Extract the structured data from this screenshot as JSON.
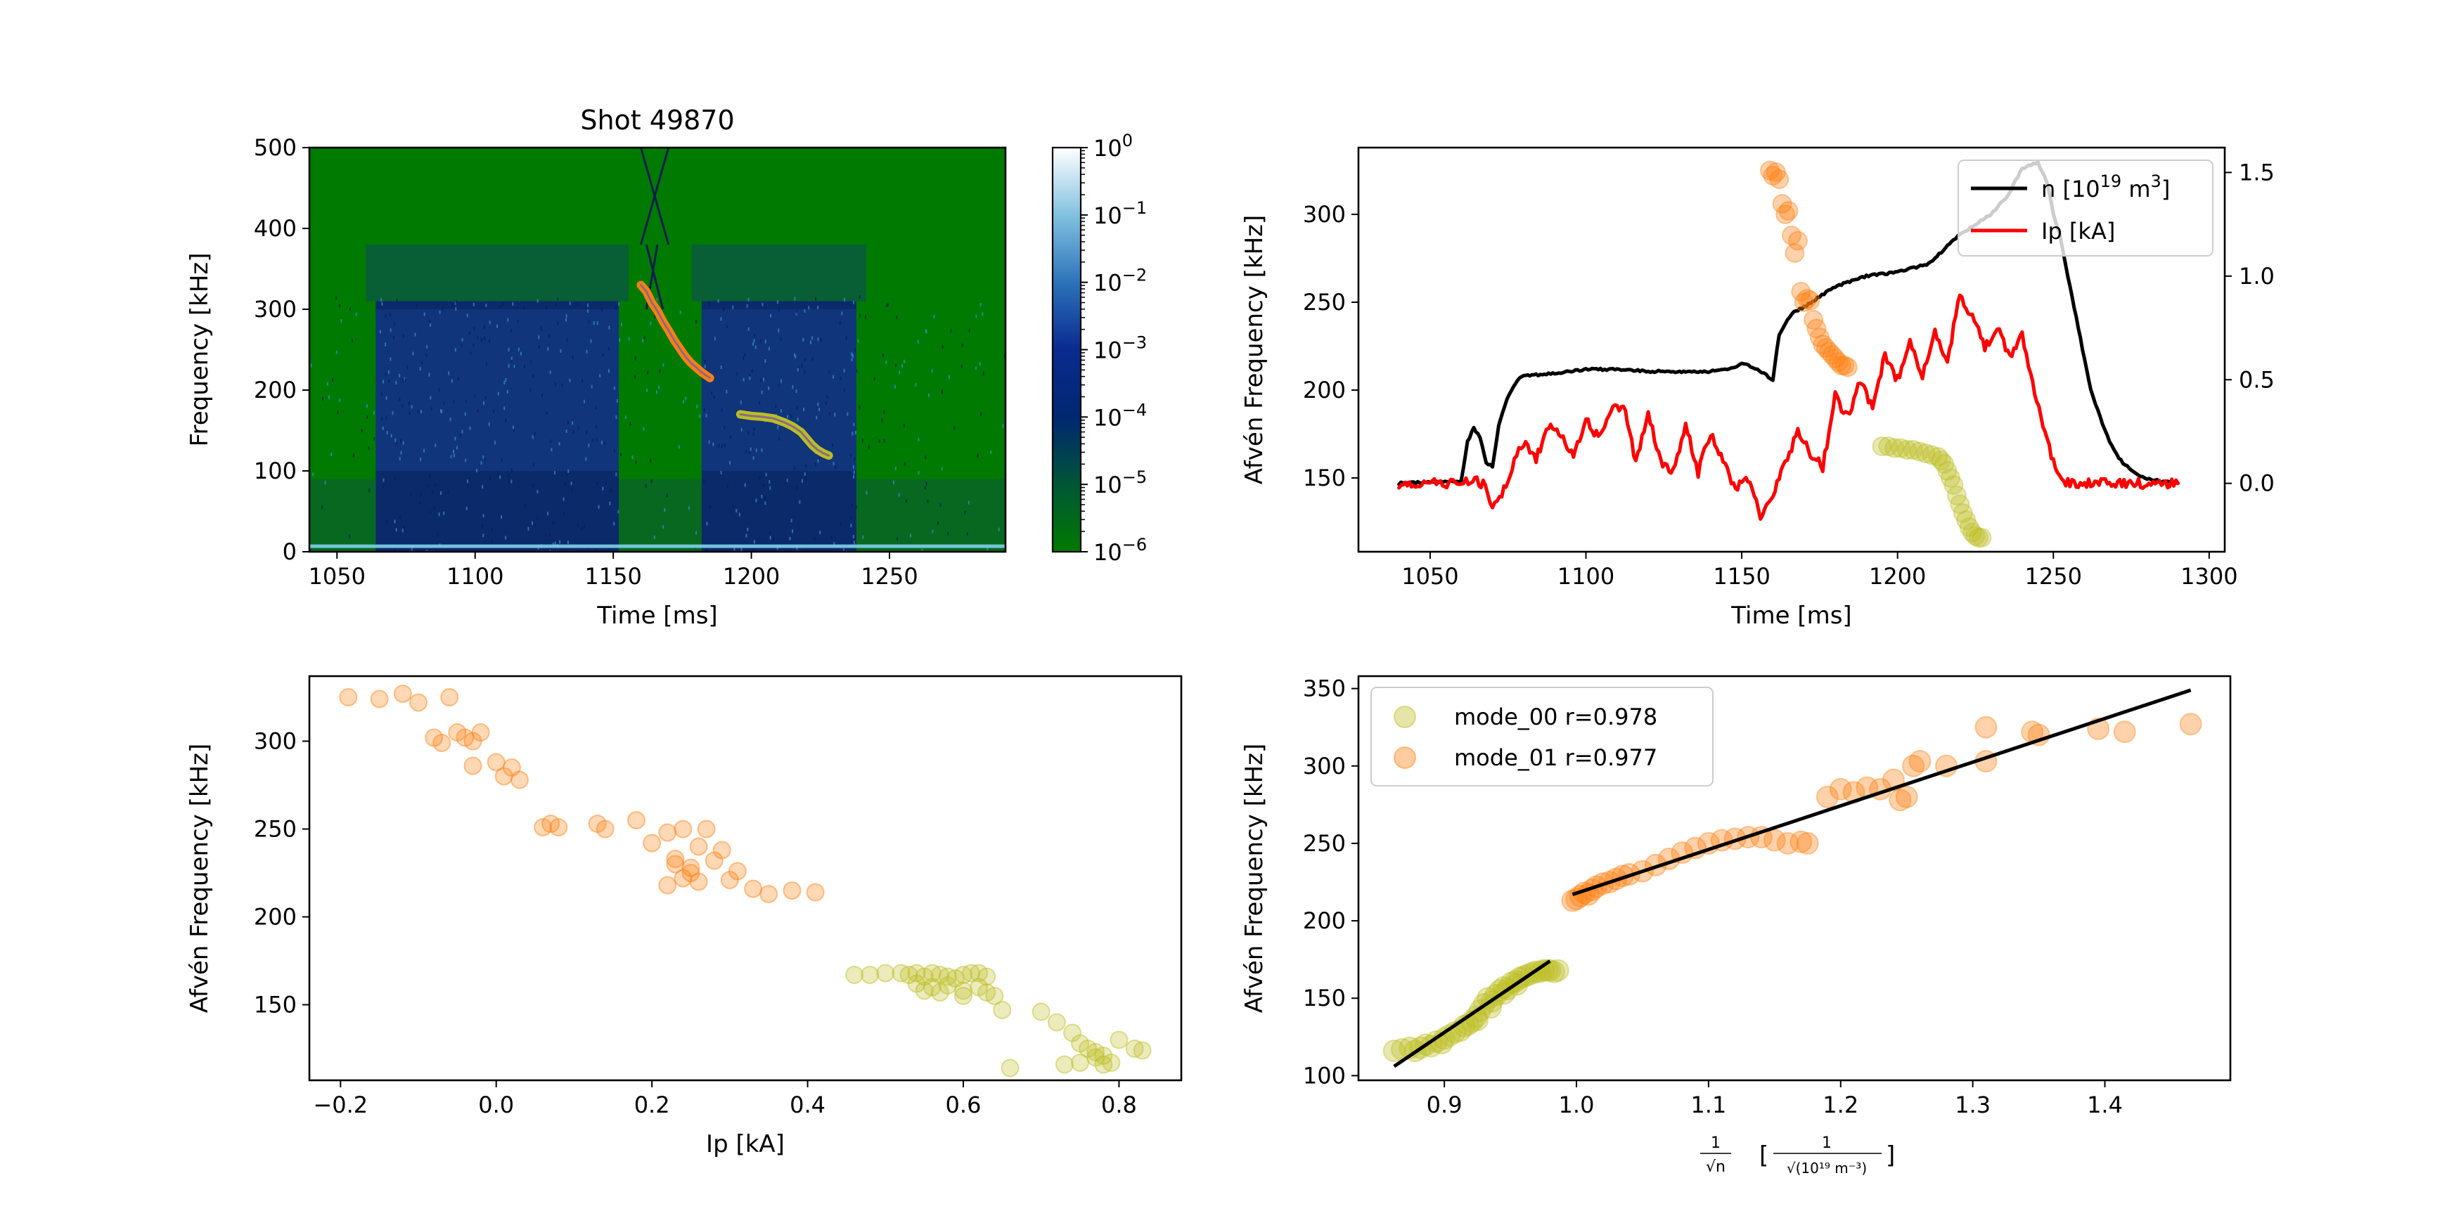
{
  "figure": {
    "background": "#ffffff",
    "colors": {
      "mode_00": "#bcbd22",
      "mode_01": "#ff7f0e",
      "density": "#000000",
      "current": "#ff0000",
      "fit": "#000000",
      "spectrogram_bg": "#007a00",
      "spectrogram_band": "#0b2a6a"
    }
  },
  "chart_data": [
    {
      "id": "spectrogram",
      "type": "heatmap",
      "title": "Shot 49870",
      "xlabel": "Time [ms]",
      "ylabel": "Frequency [kHz]",
      "xlim": [
        1040,
        1292
      ],
      "ylim": [
        0,
        500
      ],
      "xticks": [
        1050,
        1100,
        1150,
        1200,
        1250
      ],
      "xtick_labels": [
        "1050",
        "1100",
        "1150",
        "1200",
        "1250"
      ],
      "yticks": [
        0,
        100,
        200,
        300,
        400,
        500
      ],
      "ytick_labels": [
        "0",
        "100",
        "200",
        "300",
        "400",
        "500"
      ],
      "colorbar": {
        "scale": "log",
        "colormap": "ocean",
        "ticks": [
          {
            "base": "10",
            "exp": "0"
          },
          {
            "base": "10",
            "exp": "−1"
          },
          {
            "base": "10",
            "exp": "−2"
          },
          {
            "base": "10",
            "exp": "−3"
          },
          {
            "base": "10",
            "exp": "−4"
          },
          {
            "base": "10",
            "exp": "−5"
          },
          {
            "base": "10",
            "exp": "−6"
          }
        ]
      },
      "high_power_windows_ms": [
        [
          1064,
          1152
        ],
        [
          1182,
          1238
        ]
      ],
      "overlays": [
        {
          "name": "mode_01",
          "points": [
            [
              1160,
              330
            ],
            [
              1162,
              322
            ],
            [
              1164,
              308
            ],
            [
              1166,
              298
            ],
            [
              1168,
              285
            ],
            [
              1170,
              274
            ],
            [
              1172,
              262
            ],
            [
              1174,
              252
            ],
            [
              1176,
              242
            ],
            [
              1178,
              234
            ],
            [
              1180,
              228
            ],
            [
              1182,
              222
            ],
            [
              1185,
              215
            ]
          ]
        },
        {
          "name": "mode_00",
          "points": [
            [
              1196,
              170
            ],
            [
              1200,
              168
            ],
            [
              1204,
              167
            ],
            [
              1208,
              165
            ],
            [
              1212,
              160
            ],
            [
              1215,
              155
            ],
            [
              1218,
              148
            ],
            [
              1220,
              140
            ],
            [
              1222,
              132
            ],
            [
              1224,
              126
            ],
            [
              1226,
              122
            ],
            [
              1228,
              119
            ]
          ]
        }
      ]
    },
    {
      "id": "alfven_vs_time",
      "type": "line",
      "xlabel": "Time [ms]",
      "ylabel": "Afvén Frequency [kHz]",
      "xlim": [
        1027,
        1305
      ],
      "ylim": [
        108,
        338
      ],
      "y2lim": [
        -0.33,
        1.62
      ],
      "xticks": [
        1050,
        1100,
        1150,
        1200,
        1250,
        1300
      ],
      "xtick_labels": [
        "1050",
        "1100",
        "1150",
        "1200",
        "1250",
        "1300"
      ],
      "yticks": [
        150,
        200,
        250,
        300
      ],
      "ytick_labels": [
        "150",
        "200",
        "250",
        "300"
      ],
      "y2ticks": [
        0.0,
        0.5,
        1.0,
        1.5
      ],
      "y2tick_labels": [
        "0.0",
        "0.5",
        "1.0",
        "1.5"
      ],
      "legend_position": "top-right",
      "legend": [
        {
          "key": "density",
          "label_main": "n  [10",
          "label_sup": "19",
          "label_mid": " m",
          "label_sup2": "3",
          "label_end": "]"
        },
        {
          "key": "current",
          "label_main": "Ip [kA]"
        }
      ],
      "series": [
        {
          "name": "n",
          "axis": "right",
          "x": [
            1040,
            1060,
            1062,
            1064,
            1066,
            1068,
            1070,
            1072,
            1074,
            1076,
            1078,
            1080,
            1090,
            1100,
            1110,
            1120,
            1130,
            1140,
            1146,
            1150,
            1155,
            1160,
            1162,
            1166,
            1170,
            1175,
            1180,
            1190,
            1200,
            1210,
            1220,
            1230,
            1235,
            1240,
            1245,
            1248,
            1250,
            1252,
            1254,
            1256,
            1258,
            1260,
            1262,
            1265,
            1268,
            1271,
            1275,
            1280,
            1290
          ],
          "y": [
            0.0,
            0.01,
            0.2,
            0.27,
            0.22,
            0.1,
            0.08,
            0.28,
            0.38,
            0.45,
            0.5,
            0.52,
            0.53,
            0.55,
            0.55,
            0.54,
            0.54,
            0.54,
            0.55,
            0.58,
            0.55,
            0.5,
            0.72,
            0.82,
            0.85,
            0.9,
            0.95,
            1.0,
            1.02,
            1.06,
            1.2,
            1.3,
            1.38,
            1.52,
            1.55,
            1.45,
            1.3,
            1.2,
            1.05,
            0.9,
            0.75,
            0.6,
            0.45,
            0.32,
            0.2,
            0.12,
            0.06,
            0.02,
            0.0
          ]
        },
        {
          "name": "Ip",
          "axis": "right",
          "x": [
            1040,
            1050,
            1060,
            1063,
            1067,
            1070,
            1073,
            1077,
            1080,
            1084,
            1088,
            1092,
            1096,
            1100,
            1104,
            1108,
            1112,
            1116,
            1120,
            1124,
            1128,
            1132,
            1136,
            1140,
            1144,
            1148,
            1152,
            1156,
            1160,
            1164,
            1168,
            1172,
            1176,
            1180,
            1184,
            1188,
            1192,
            1196,
            1200,
            1204,
            1208,
            1212,
            1216,
            1220,
            1224,
            1228,
            1232,
            1236,
            1240,
            1244,
            1248,
            1252,
            1256,
            1260,
            1270,
            1280,
            1290
          ],
          "y": [
            0.0,
            0.0,
            0.0,
            0.02,
            0.0,
            -0.12,
            -0.05,
            0.1,
            0.2,
            0.12,
            0.28,
            0.22,
            0.15,
            0.3,
            0.22,
            0.35,
            0.38,
            0.1,
            0.35,
            0.1,
            0.05,
            0.28,
            0.05,
            0.25,
            0.1,
            -0.02,
            0.02,
            -0.15,
            -0.05,
            0.1,
            0.25,
            0.15,
            0.08,
            0.42,
            0.32,
            0.5,
            0.35,
            0.62,
            0.5,
            0.7,
            0.52,
            0.72,
            0.58,
            0.92,
            0.8,
            0.66,
            0.75,
            0.6,
            0.72,
            0.45,
            0.2,
            0.02,
            0.0,
            0.0,
            0.0,
            0.0,
            0.0
          ]
        },
        {
          "name": "mode_01",
          "axis": "left",
          "type": "scatter",
          "x": [
            1159,
            1160,
            1161,
            1162,
            1163,
            1164,
            1165,
            1166,
            1167,
            1168,
            1169,
            1170,
            1171,
            1172,
            1173,
            1174,
            1175,
            1176,
            1177,
            1178,
            1179,
            1180,
            1181,
            1182,
            1183,
            1184
          ],
          "y": [
            325,
            322,
            324,
            320,
            306,
            300,
            302,
            288,
            278,
            285,
            256,
            250,
            252,
            251,
            240,
            235,
            230,
            226,
            224,
            222,
            220,
            218,
            216,
            214,
            214,
            213
          ]
        },
        {
          "name": "mode_00",
          "axis": "left",
          "type": "scatter",
          "x": [
            1195,
            1197,
            1199,
            1201,
            1203,
            1205,
            1207,
            1209,
            1211,
            1213,
            1214,
            1215,
            1216,
            1217,
            1218,
            1219,
            1220,
            1221,
            1222,
            1223,
            1224,
            1225,
            1226,
            1227
          ],
          "y": [
            168,
            168,
            167,
            167,
            166,
            166,
            165,
            164,
            163,
            162,
            160,
            158,
            154,
            150,
            146,
            140,
            135,
            130,
            126,
            122,
            119,
            117,
            116,
            116
          ]
        }
      ]
    },
    {
      "id": "alfven_vs_ip",
      "type": "scatter",
      "xlabel": "Ip [kA]",
      "ylabel": "Afvén Frequency [kHz]",
      "xlim": [
        -0.24,
        0.88
      ],
      "ylim": [
        107,
        337
      ],
      "xticks": [
        -0.2,
        0.0,
        0.2,
        0.4,
        0.6,
        0.8
      ],
      "xtick_labels": [
        "−0.2",
        "0.0",
        "0.2",
        "0.4",
        "0.6",
        "0.8"
      ],
      "yticks": [
        150,
        200,
        250,
        300
      ],
      "ytick_labels": [
        "150",
        "200",
        "250",
        "300"
      ],
      "series": [
        {
          "name": "mode_01",
          "x": [
            -0.19,
            -0.15,
            -0.12,
            -0.1,
            -0.06,
            -0.08,
            -0.05,
            -0.03,
            -0.04,
            -0.07,
            -0.02,
            -0.03,
            0.0,
            0.02,
            0.03,
            0.01,
            0.06,
            0.07,
            0.08,
            0.13,
            0.14,
            0.18,
            0.2,
            0.22,
            0.24,
            0.23,
            0.26,
            0.27,
            0.25,
            0.28,
            0.29,
            0.31,
            0.24,
            0.22,
            0.26,
            0.3,
            0.33,
            0.35,
            0.38,
            0.41,
            0.23,
            0.25
          ],
          "y": [
            325,
            324,
            327,
            322,
            325,
            302,
            305,
            300,
            302,
            299,
            305,
            286,
            288,
            285,
            278,
            280,
            251,
            253,
            251,
            253,
            250,
            255,
            242,
            248,
            250,
            233,
            240,
            250,
            225,
            232,
            238,
            226,
            222,
            218,
            220,
            221,
            216,
            213,
            215,
            214,
            230,
            228
          ]
        },
        {
          "name": "mode_00",
          "x": [
            0.46,
            0.48,
            0.5,
            0.52,
            0.53,
            0.54,
            0.55,
            0.56,
            0.57,
            0.58,
            0.59,
            0.6,
            0.61,
            0.62,
            0.63,
            0.54,
            0.56,
            0.58,
            0.6,
            0.62,
            0.63,
            0.64,
            0.65,
            0.55,
            0.57,
            0.6,
            0.66,
            0.7,
            0.72,
            0.74,
            0.75,
            0.76,
            0.77,
            0.78,
            0.79,
            0.8,
            0.82,
            0.83,
            0.75,
            0.73,
            0.77,
            0.78
          ],
          "y": [
            167,
            167,
            168,
            168,
            167,
            168,
            166,
            168,
            167,
            166,
            165,
            167,
            168,
            168,
            166,
            162,
            160,
            161,
            158,
            160,
            157,
            155,
            147,
            158,
            157,
            155,
            114,
            146,
            140,
            134,
            128,
            125,
            123,
            121,
            117,
            130,
            125,
            124,
            117,
            116,
            120,
            116
          ]
        }
      ]
    },
    {
      "id": "alfven_vs_density",
      "type": "scatter",
      "xlabel": "1/√n  [1/√(10¹⁹ m⁻³)]",
      "ylabel": "Afvén Frequency [kHz]",
      "xlim": [
        0.835,
        1.495
      ],
      "ylim": [
        97,
        358
      ],
      "xticks": [
        0.9,
        1.0,
        1.1,
        1.2,
        1.3,
        1.4
      ],
      "xtick_labels": [
        "0.9",
        "1.0",
        "1.1",
        "1.2",
        "1.3",
        "1.4"
      ],
      "yticks": [
        100,
        150,
        200,
        250,
        300,
        350
      ],
      "ytick_labels": [
        "100",
        "150",
        "200",
        "250",
        "300",
        "350"
      ],
      "legend_position": "top-left",
      "legend": [
        {
          "key": "mode_00",
          "label": "mode_00 r=0.978"
        },
        {
          "key": "mode_01",
          "label": "mode_01 r=0.977"
        }
      ],
      "fits": [
        {
          "name": "mode_00",
          "x": [
            0.862,
            0.98
          ],
          "y": [
            106,
            174
          ]
        },
        {
          "name": "mode_01",
          "x": [
            0.997,
            1.465
          ],
          "y": [
            217,
            349
          ]
        }
      ],
      "series": [
        {
          "name": "mode_00",
          "x": [
            0.862,
            0.868,
            0.874,
            0.878,
            0.882,
            0.886,
            0.89,
            0.894,
            0.898,
            0.9,
            0.904,
            0.908,
            0.912,
            0.915,
            0.918,
            0.921,
            0.924,
            0.927,
            0.93,
            0.933,
            0.936,
            0.939,
            0.942,
            0.945,
            0.948,
            0.951,
            0.954,
            0.957,
            0.96,
            0.963,
            0.966,
            0.969,
            0.972,
            0.975,
            0.978,
            0.98,
            0.983,
            0.986,
            0.935,
            0.925,
            0.945,
            0.955
          ],
          "y": [
            116,
            117,
            118,
            116,
            118,
            120,
            119,
            122,
            121,
            124,
            126,
            128,
            129,
            132,
            133,
            135,
            138,
            142,
            146,
            150,
            148,
            152,
            155,
            157,
            156,
            160,
            161,
            163,
            164,
            165,
            166,
            167,
            167,
            168,
            168,
            168,
            167,
            168,
            144,
            136,
            153,
            159
          ]
        },
        {
          "name": "mode_01",
          "x": [
            0.997,
            1.0,
            1.003,
            1.006,
            1.009,
            1.012,
            1.015,
            1.02,
            1.025,
            1.03,
            1.035,
            1.04,
            1.05,
            1.06,
            1.07,
            1.08,
            1.09,
            1.1,
            1.11,
            1.12,
            1.13,
            1.14,
            1.15,
            1.16,
            1.17,
            1.175,
            1.19,
            1.2,
            1.21,
            1.22,
            1.23,
            1.24,
            1.245,
            1.25,
            1.255,
            1.26,
            1.28,
            1.31,
            1.345,
            1.35,
            1.395,
            1.415,
            1.465,
            1.31
          ],
          "y": [
            213,
            214,
            216,
            218,
            217,
            220,
            222,
            224,
            225,
            227,
            229,
            230,
            232,
            236,
            240,
            244,
            247,
            250,
            252,
            253,
            254,
            254,
            252,
            250,
            251,
            250,
            280,
            285,
            283,
            286,
            285,
            291,
            278,
            280,
            300,
            303,
            300,
            325,
            322,
            320,
            324,
            322,
            327,
            303
          ]
        }
      ]
    }
  ]
}
